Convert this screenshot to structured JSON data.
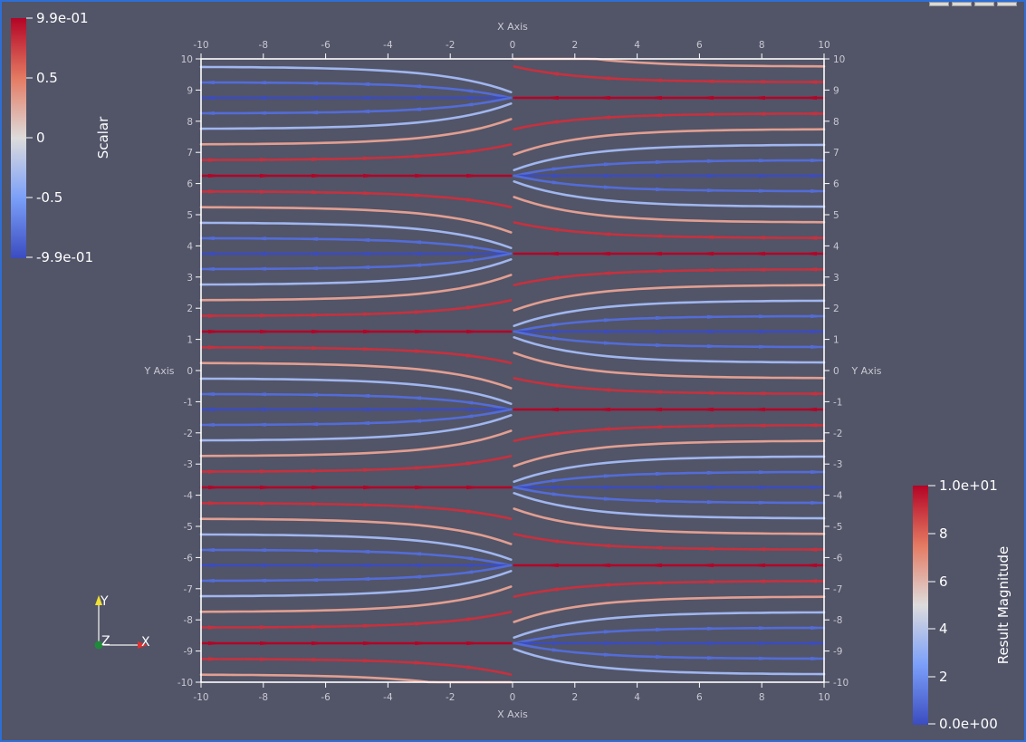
{
  "view": {
    "axes": {
      "x_title": "X Axis",
      "y_title": "Y Axis",
      "ticks": [
        "-10",
        "-8",
        "-6",
        "-4",
        "-2",
        "0",
        "2",
        "4",
        "6",
        "8",
        "10"
      ],
      "y_ticks": [
        "10",
        "9",
        "8",
        "7",
        "6",
        "5",
        "4",
        "3",
        "2",
        "1",
        "0",
        "-1",
        "-2",
        "-3",
        "-4",
        "-5",
        "-6",
        "-7",
        "-8",
        "-9",
        "-10"
      ]
    },
    "orientation": {
      "y": "Y",
      "z": "Z",
      "x": "X"
    }
  },
  "scalar_bar": {
    "title": "Scalar",
    "max": "9.9e-01",
    "mid_high": "0.5",
    "zero": "0",
    "mid_low": "-0.5",
    "min": "-9.9e-01",
    "colors": [
      "#b40426",
      "#e47a62",
      "#dddcdc",
      "#7b9ff9",
      "#3b4cc0"
    ]
  },
  "magnitude_bar": {
    "title": "Result Magnitude",
    "max": "1.0e+01",
    "t8": "8",
    "t6": "6",
    "t4": "4",
    "t2": "2",
    "min": "0.0e+00",
    "colors": [
      "#b40426",
      "#e47a62",
      "#dddcdc",
      "#7b9ff9",
      "#3b4cc0"
    ]
  },
  "chart_data": {
    "type": "stream-tracer",
    "x_range": [
      -10,
      10
    ],
    "y_range": [
      -10,
      10
    ],
    "grid": false,
    "color_ramp": [
      "#3b4cc0",
      "#7b9ff9",
      "#dddcdc",
      "#e47a62",
      "#b40426"
    ]
  }
}
